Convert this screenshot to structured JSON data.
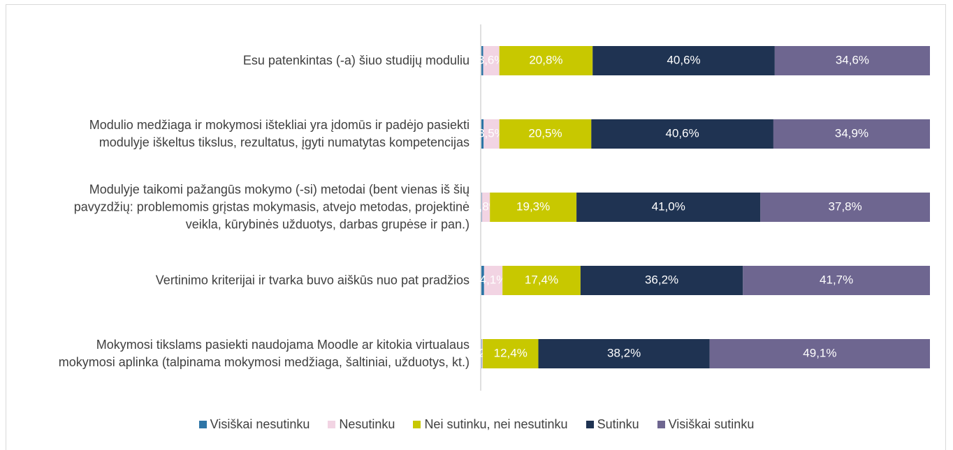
{
  "chart_data": {
    "type": "stacked_bar_horizontal",
    "categories": [
      "Esu patenkintas (-a) šiuo studijų moduliu",
      "Modulio medžiaga ir mokymosi ištekliai yra įdomūs ir padėjo pasiekti modulyje iškeltus tikslus, rezultatus, įgyti numatytas kompetencijas",
      "Modulyje taikomi pažangūs mokymo (-si) metodai (bent vienas iš šių pavyzdžių: problemomis grįstas mokymasis, atvejo metodas, projektinė veikla, kūrybinės užduotys, darbas grupėse ir pan.)",
      "Vertinimo kriterijai ir tvarka buvo aiškūs nuo pat pradžios",
      "Mokymosi tikslams pasiekti naudojama Moodle ar kitokia virtualaus mokymosi aplinka (talpinama mokymosi medžiaga, šaltiniai, užduotys, kt.)"
    ],
    "series": [
      {
        "name": "Visiškai nesutinku",
        "color": "#2e75a6",
        "values": [
          0.4,
          0.5,
          0.1,
          0.6,
          0.1
        ],
        "value_labels": [
          null,
          null,
          null,
          null,
          null
        ]
      },
      {
        "name": "Nesutinku",
        "color": "#f2d4e3",
        "values": [
          3.6,
          3.5,
          1.8,
          4.1,
          0.2
        ],
        "value_labels": [
          "3,6%",
          "3,5%",
          "1,8%",
          "4,1%",
          "0,2%"
        ]
      },
      {
        "name": "Nei sutinku, nei nesutinku",
        "color": "#c8c800",
        "values": [
          20.8,
          20.5,
          19.3,
          17.4,
          12.4
        ],
        "value_labels": [
          "20,8%",
          "20,5%",
          "19,3%",
          "17,4%",
          "12,4%"
        ]
      },
      {
        "name": "Sutinku",
        "color": "#1f3352",
        "values": [
          40.6,
          40.6,
          41.0,
          36.2,
          38.2
        ],
        "value_labels": [
          "40,6%",
          "40,6%",
          "41,0%",
          "36,2%",
          "38,2%"
        ]
      },
      {
        "name": "Visiškai sutinku",
        "color": "#6e6690",
        "values": [
          34.6,
          34.9,
          37.8,
          41.7,
          49.1
        ],
        "value_labels": [
          "34,6%",
          "34,9%",
          "37,8%",
          "41,7%",
          "49,1%"
        ]
      }
    ],
    "xlim": [
      0,
      100
    ]
  }
}
